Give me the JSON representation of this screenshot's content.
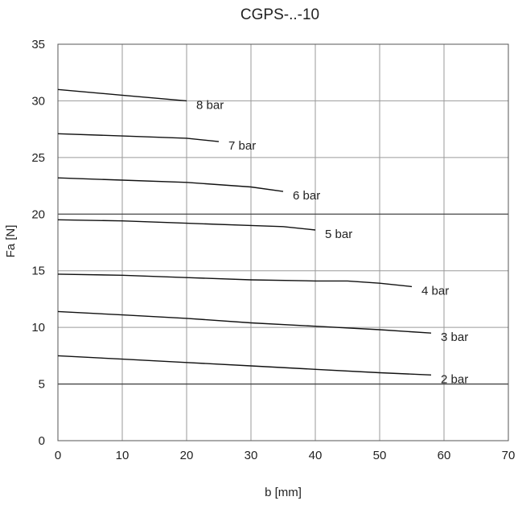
{
  "chart_data": {
    "type": "line",
    "title": "CGPS-..-10",
    "xlabel": "b [mm]",
    "ylabel": "Fa [N]",
    "xlim": [
      0,
      70
    ],
    "ylim": [
      0,
      35
    ],
    "x_ticks": [
      0,
      10,
      20,
      30,
      40,
      50,
      60,
      70
    ],
    "y_ticks": [
      0,
      5,
      10,
      15,
      20,
      25,
      30,
      35
    ],
    "grid": true,
    "line_color": "#111111",
    "grid_color": "#9a9a9a",
    "series": [
      {
        "name": "8 bar",
        "x": [
          0,
          10,
          20
        ],
        "y": [
          31.0,
          30.5,
          30.0
        ]
      },
      {
        "name": "7 bar",
        "x": [
          0,
          10,
          20,
          25
        ],
        "y": [
          27.1,
          26.9,
          26.7,
          26.4
        ]
      },
      {
        "name": "6 bar",
        "x": [
          0,
          10,
          20,
          30,
          35
        ],
        "y": [
          23.2,
          23.0,
          22.8,
          22.4,
          22.0
        ]
      },
      {
        "name": "5 bar",
        "x": [
          0,
          10,
          20,
          30,
          35,
          40
        ],
        "y": [
          19.5,
          19.4,
          19.2,
          19.0,
          18.9,
          18.6
        ]
      },
      {
        "name": "4 bar",
        "x": [
          0,
          10,
          20,
          30,
          40,
          45,
          50,
          55
        ],
        "y": [
          14.7,
          14.6,
          14.4,
          14.2,
          14.1,
          14.1,
          13.9,
          13.6
        ]
      },
      {
        "name": "3 bar",
        "x": [
          0,
          10,
          20,
          30,
          40,
          50,
          58
        ],
        "y": [
          11.4,
          11.1,
          10.8,
          10.4,
          10.1,
          9.8,
          9.5
        ]
      },
      {
        "name": "2 bar",
        "x": [
          0,
          10,
          20,
          30,
          40,
          50,
          58
        ],
        "y": [
          7.5,
          7.2,
          6.9,
          6.6,
          6.3,
          6.0,
          5.8
        ]
      }
    ]
  }
}
